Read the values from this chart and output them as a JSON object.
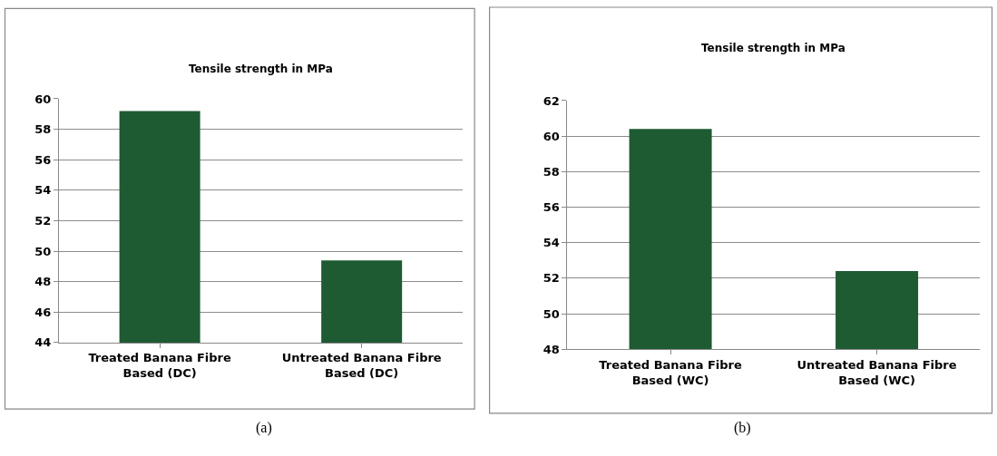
{
  "chart_data": [
    {
      "type": "bar",
      "title": "Tensile strength in MPa",
      "categories": [
        "Treated Banana Fibre Based (DC)",
        "Untreated Banana Fibre Based (DC)"
      ],
      "values": [
        59.2,
        49.4
      ],
      "color": "#1e5a32",
      "ylim": [
        44,
        60
      ],
      "yticks": [
        44,
        46,
        48,
        50,
        52,
        54,
        56,
        58,
        60
      ],
      "grid": "y",
      "annotations": [
        "(a)"
      ]
    },
    {
      "type": "bar",
      "title": "Tensile strength in MPa",
      "categories": [
        "Treated Banana Fibre Based (WC)",
        "Untreated Banana Fibre Based (WC)"
      ],
      "values": [
        60.4,
        52.4
      ],
      "color": "#1e5a32",
      "ylim": [
        48,
        62
      ],
      "yticks": [
        48,
        50,
        52,
        54,
        56,
        58,
        60,
        62
      ],
      "grid": "y",
      "annotations": [
        "(b)"
      ]
    }
  ]
}
